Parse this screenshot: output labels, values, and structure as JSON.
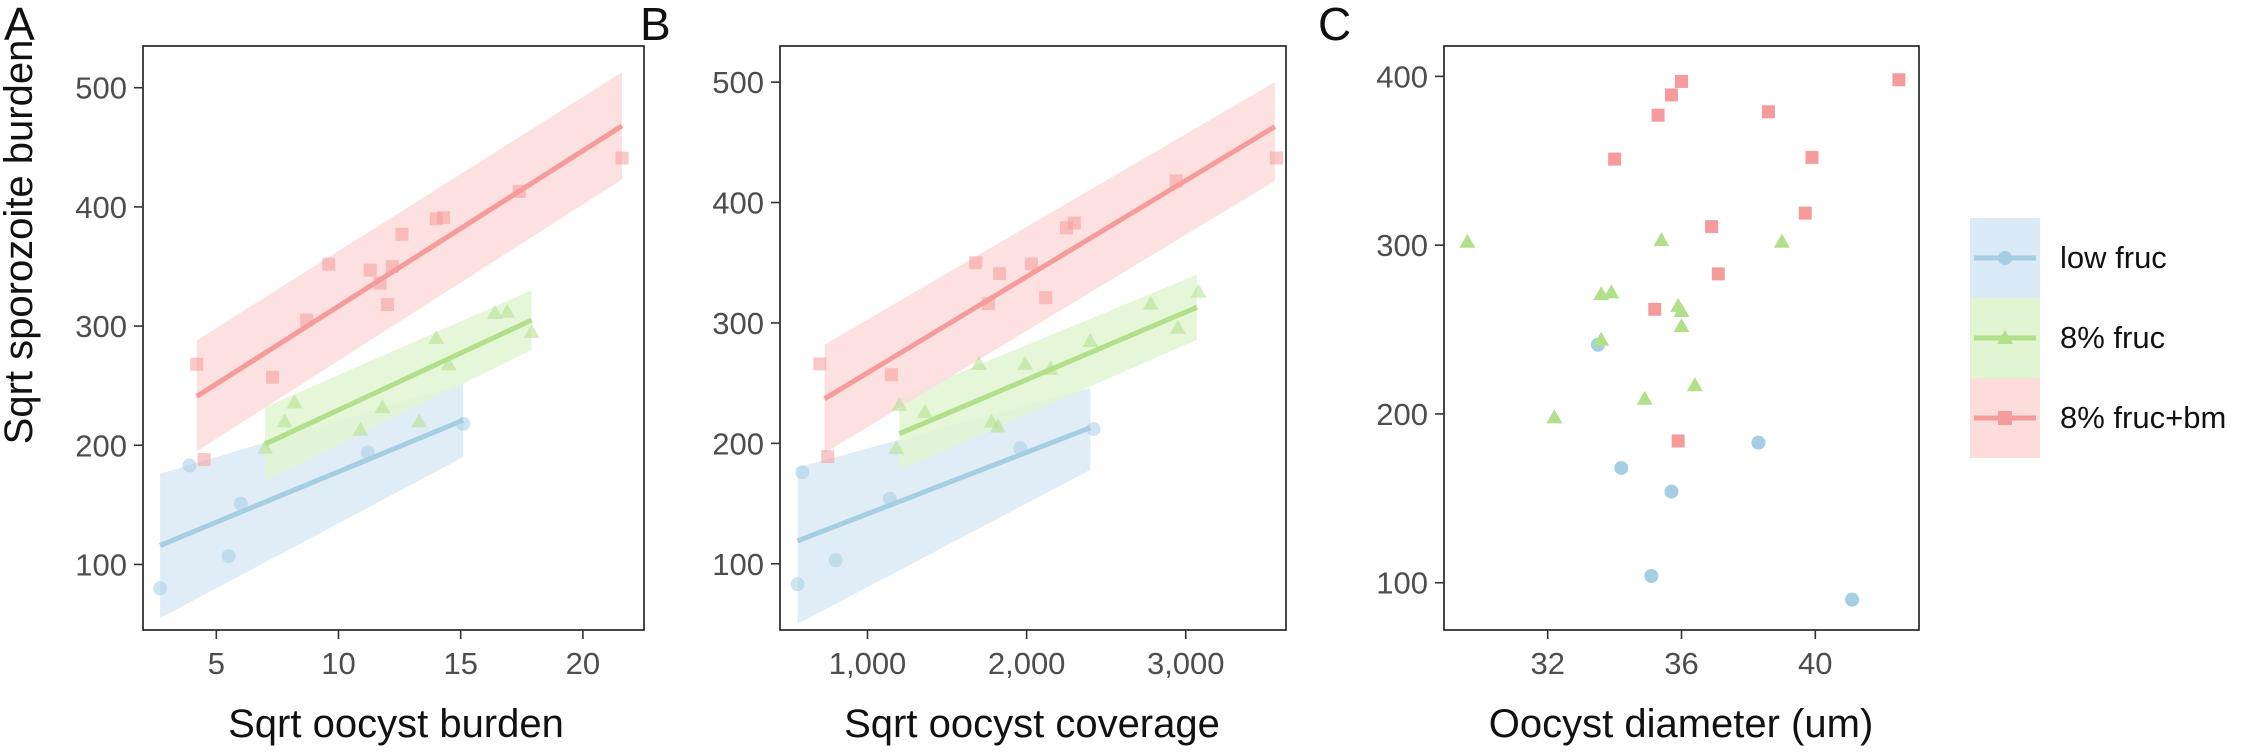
{
  "chart_data": [
    {
      "type": "scatter",
      "panel_label": "A",
      "xlabel": "Sqrt oocyst burden",
      "ylabel": "Sqrt sporozoite burden",
      "xlim": [
        2,
        22.5
      ],
      "ylim": [
        45,
        535
      ],
      "xticks": [
        5,
        10,
        15,
        20
      ],
      "xtick_labels": [
        "5",
        "10",
        "15",
        "20"
      ],
      "yticks": [
        100,
        200,
        300,
        400,
        500
      ],
      "ytick_labels": [
        "100",
        "200",
        "300",
        "400",
        "500"
      ],
      "series": [
        {
          "name": "low fruc",
          "points": [
            [
              2.7,
              80
            ],
            [
              3.9,
              183
            ],
            [
              5.5,
              107
            ],
            [
              6.0,
              151
            ],
            [
              11.2,
              194
            ],
            [
              15.1,
              218
            ]
          ],
          "fit": {
            "x0": 2.7,
            "y0": 116,
            "x1": 15.1,
            "y1": 221
          },
          "band": {
            "lo0": 55,
            "hi0": 176,
            "lo1": 190,
            "hi1": 252
          }
        },
        {
          "name": "8% fruc",
          "points": [
            [
              7.0,
              198
            ],
            [
              7.8,
              220
            ],
            [
              8.2,
              236
            ],
            [
              10.9,
              213
            ],
            [
              11.8,
              232
            ],
            [
              13.3,
              220
            ],
            [
              14.0,
              290
            ],
            [
              14.5,
              268
            ],
            [
              16.4,
              311
            ],
            [
              16.9,
              312
            ],
            [
              17.9,
              295
            ]
          ],
          "fit": {
            "x0": 7.0,
            "y0": 201,
            "x1": 17.9,
            "y1": 305
          },
          "band": {
            "lo0": 170,
            "hi0": 232,
            "lo1": 280,
            "hi1": 330
          }
        },
        {
          "name": "8% fruc+bm",
          "points": [
            [
              4.2,
              268
            ],
            [
              4.5,
              188
            ],
            [
              7.3,
              257
            ],
            [
              8.7,
              305
            ],
            [
              9.6,
              352
            ],
            [
              11.3,
              347
            ],
            [
              11.7,
              336
            ],
            [
              12.0,
              318
            ],
            [
              12.2,
              350
            ],
            [
              12.6,
              377
            ],
            [
              14.0,
              390
            ],
            [
              14.3,
              391
            ],
            [
              17.4,
              413
            ],
            [
              21.6,
              441
            ]
          ],
          "fit": {
            "x0": 4.2,
            "y0": 241,
            "x1": 21.6,
            "y1": 468
          },
          "band": {
            "lo0": 195,
            "hi0": 288,
            "lo1": 423,
            "hi1": 513
          }
        }
      ]
    },
    {
      "type": "scatter",
      "panel_label": "B",
      "xlabel": "Sqrt oocyst coverage",
      "ylabel": "",
      "xlim": [
        450,
        3630
      ],
      "ylim": [
        45,
        530
      ],
      "xticks": [
        1000,
        2000,
        3000
      ],
      "xtick_labels": [
        "1,000",
        "2,000",
        "3,000"
      ],
      "yticks": [
        100,
        200,
        300,
        400,
        500
      ],
      "ytick_labels": [
        "100",
        "200",
        "300",
        "400",
        "500"
      ],
      "series": [
        {
          "name": "low fruc",
          "points": [
            [
              560,
              83
            ],
            [
              590,
              176
            ],
            [
              800,
              103
            ],
            [
              1140,
              154
            ],
            [
              1960,
              196
            ],
            [
              2420,
              212
            ]
          ],
          "fit": {
            "x0": 560,
            "y0": 119,
            "x1": 2400,
            "y1": 213
          },
          "band": {
            "lo0": 50,
            "hi0": 180,
            "lo1": 178,
            "hi1": 246
          }
        },
        {
          "name": "8% fruc",
          "points": [
            [
              1180,
              196
            ],
            [
              1200,
              232
            ],
            [
              1360,
              226
            ],
            [
              1700,
              266
            ],
            [
              1780,
              218
            ],
            [
              1820,
              214
            ],
            [
              1990,
              266
            ],
            [
              2150,
              262
            ],
            [
              2400,
              285
            ],
            [
              2780,
              316
            ],
            [
              2950,
              296
            ],
            [
              3080,
              326
            ]
          ],
          "fit": {
            "x0": 1200,
            "y0": 208,
            "x1": 3070,
            "y1": 313
          },
          "band": {
            "lo0": 178,
            "hi0": 238,
            "lo1": 286,
            "hi1": 340
          }
        },
        {
          "name": "8% fruc+bm",
          "points": [
            [
              700,
              266
            ],
            [
              750,
              189
            ],
            [
              1150,
              257
            ],
            [
              1680,
              350
            ],
            [
              1760,
              316
            ],
            [
              1830,
              341
            ],
            [
              2030,
              349
            ],
            [
              2120,
              321
            ],
            [
              2250,
              379
            ],
            [
              2300,
              383
            ],
            [
              2940,
              418
            ],
            [
              3570,
              437
            ]
          ],
          "fit": {
            "x0": 730,
            "y0": 237,
            "x1": 3560,
            "y1": 463
          },
          "band": {
            "lo0": 192,
            "hi0": 282,
            "lo1": 418,
            "hi1": 500
          }
        }
      ]
    },
    {
      "type": "scatter",
      "panel_label": "C",
      "xlabel": "Oocyst diameter (um)",
      "ylabel": "",
      "xlim": [
        28.9,
        43.1
      ],
      "ylim": [
        72,
        418
      ],
      "xticks": [
        32,
        36,
        40
      ],
      "xtick_labels": [
        "32",
        "36",
        "40"
      ],
      "yticks": [
        100,
        200,
        300,
        400
      ],
      "ytick_labels": [
        "100",
        "200",
        "300",
        "400"
      ],
      "series": [
        {
          "name": "low fruc",
          "points": [
            [
              33.5,
              241
            ],
            [
              34.2,
              168
            ],
            [
              35.7,
              154
            ],
            [
              35.1,
              104
            ],
            [
              38.3,
              183
            ],
            [
              41.1,
              90
            ]
          ]
        },
        {
          "name": "8% fruc",
          "points": [
            [
              29.6,
              302
            ],
            [
              32.2,
              198
            ],
            [
              33.6,
              244
            ],
            [
              33.6,
              271
            ],
            [
              33.9,
              272
            ],
            [
              34.9,
              209
            ],
            [
              35.4,
              303
            ],
            [
              35.9,
              264
            ],
            [
              36.0,
              252
            ],
            [
              36.0,
              261
            ],
            [
              36.4,
              217
            ],
            [
              39.0,
              302
            ]
          ]
        },
        {
          "name": "8% fruc+bm",
          "points": [
            [
              34.0,
              351
            ],
            [
              35.2,
              262
            ],
            [
              35.3,
              377
            ],
            [
              35.7,
              389
            ],
            [
              35.9,
              184
            ],
            [
              36.0,
              397
            ],
            [
              36.9,
              311
            ],
            [
              37.1,
              283
            ],
            [
              38.6,
              379
            ],
            [
              39.7,
              319
            ],
            [
              39.9,
              352
            ],
            [
              42.5,
              398
            ]
          ]
        }
      ]
    }
  ],
  "legend": {
    "position": "right",
    "entries": [
      {
        "label": "low fruc",
        "color": "#a6cee3",
        "band_color": "#daeaf6",
        "marker": "circle"
      },
      {
        "label": "8% fruc",
        "color": "#b2df8a",
        "band_color": "#e2f5d2",
        "marker": "triangle"
      },
      {
        "label": "8% fruc+bm",
        "color": "#f59b9b",
        "band_color": "#fddcdc",
        "marker": "square"
      }
    ]
  }
}
